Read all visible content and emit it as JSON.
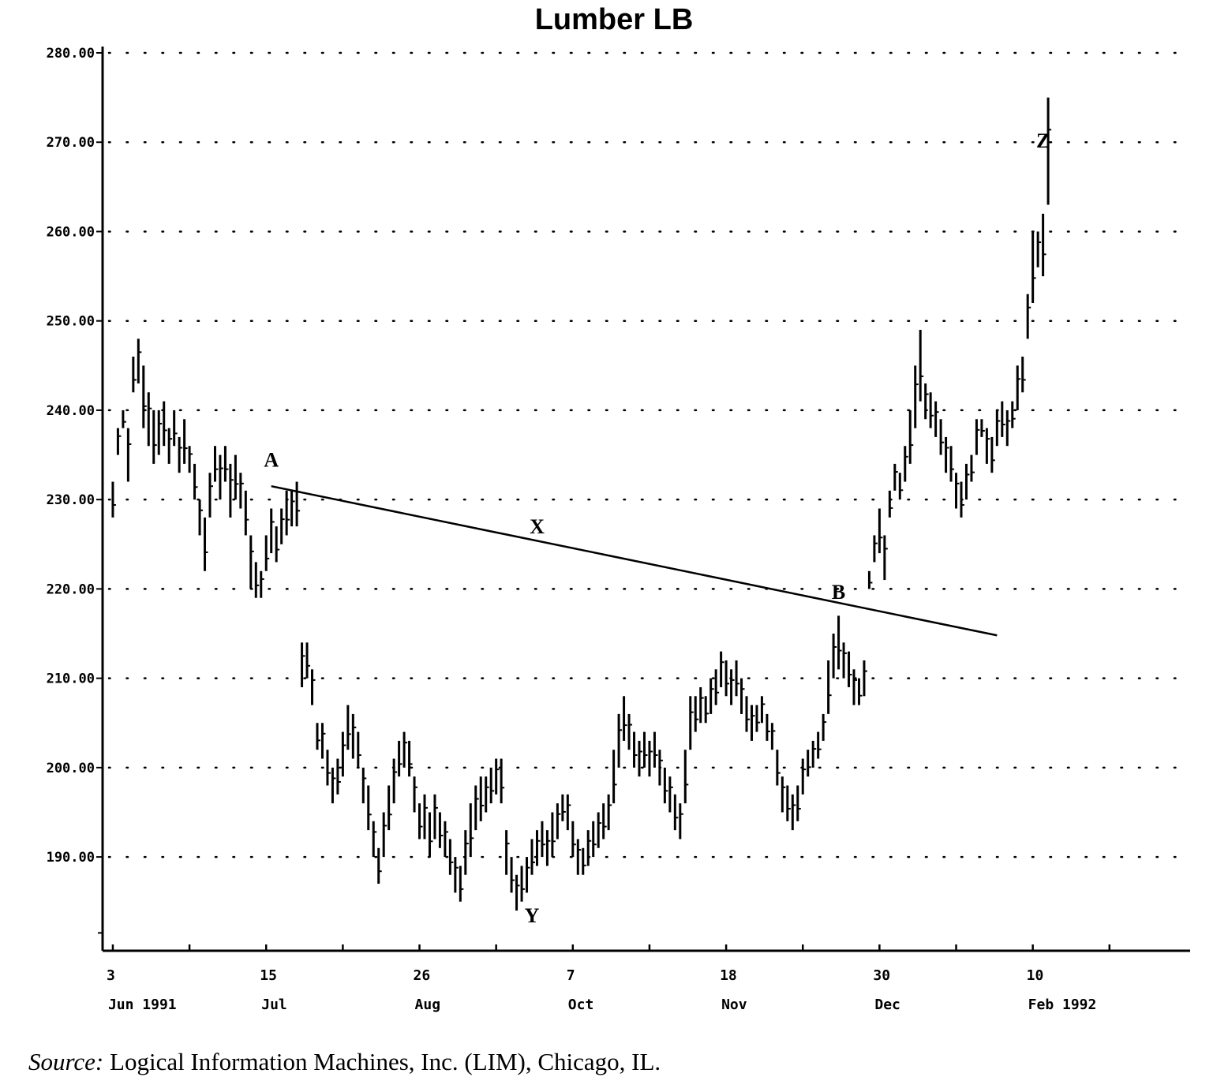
{
  "chart_data": {
    "type": "bar",
    "subtype": "ohlc-daily",
    "title": "Lumber LB",
    "source": {
      "label": "Source:",
      "text": "Logical Information Machines, Inc. (LIM), Chicago, IL."
    },
    "ylim": [
      179.5,
      280
    ],
    "y_ticks": [
      "280.00",
      "270.00",
      "260.00",
      "250.00",
      "240.00",
      "230.00",
      "220.00",
      "210.00",
      "200.00",
      "190.00"
    ],
    "y_tick_values": [
      280,
      270,
      260,
      250,
      240,
      230,
      220,
      210,
      200,
      190
    ],
    "x_tick_labels": [
      {
        "day": "3",
        "month": "Jun 1991",
        "index": 0
      },
      {
        "day": "15",
        "month": "Jul",
        "index": 30
      },
      {
        "day": "26",
        "month": "Aug",
        "index": 60
      },
      {
        "day": "7",
        "month": "Oct",
        "index": 90
      },
      {
        "day": "18",
        "month": "Nov",
        "index": 120
      },
      {
        "day": "30",
        "month": "Dec",
        "index": 150
      },
      {
        "day": "10",
        "month": "Feb 1992",
        "index": 180
      }
    ],
    "x_minor_tick_indices": [
      15,
      45,
      75,
      105,
      135,
      165,
      195
    ],
    "x_range": [
      -2,
      208
    ],
    "grid": "horizontal-dotted",
    "price_bars": [
      [
        0,
        228,
        232
      ],
      [
        1,
        235,
        238
      ],
      [
        2,
        238,
        240
      ],
      [
        3,
        232,
        238
      ],
      [
        4,
        242,
        246
      ],
      [
        5,
        243,
        248
      ],
      [
        6,
        238,
        245
      ],
      [
        7,
        236,
        242
      ],
      [
        8,
        234,
        240
      ],
      [
        9,
        235,
        240
      ],
      [
        10,
        236,
        241
      ],
      [
        11,
        234,
        238
      ],
      [
        12,
        236,
        240
      ],
      [
        13,
        233,
        237
      ],
      [
        14,
        234,
        239
      ],
      [
        15,
        233,
        236
      ],
      [
        16,
        230,
        234
      ],
      [
        17,
        226,
        230
      ],
      [
        18,
        222,
        228
      ],
      [
        19,
        228,
        233
      ],
      [
        20,
        232,
        236
      ],
      [
        21,
        230,
        235
      ],
      [
        22,
        232,
        236
      ],
      [
        23,
        228,
        234
      ],
      [
        24,
        230,
        235
      ],
      [
        25,
        229,
        233
      ],
      [
        26,
        226,
        231
      ],
      [
        27,
        220,
        226
      ],
      [
        28,
        219,
        223
      ],
      [
        29,
        219,
        222
      ],
      [
        30,
        222,
        226
      ],
      [
        31,
        224,
        229
      ],
      [
        32,
        223,
        227
      ],
      [
        33,
        225,
        229
      ],
      [
        34,
        226,
        231
      ],
      [
        35,
        227,
        231
      ],
      [
        36,
        227,
        232
      ],
      [
        37,
        209,
        214
      ],
      [
        38,
        210,
        214
      ],
      [
        39,
        207,
        211
      ],
      [
        40,
        202,
        205
      ],
      [
        41,
        201,
        205
      ],
      [
        42,
        198,
        202
      ],
      [
        43,
        196,
        200
      ],
      [
        44,
        197,
        201
      ],
      [
        45,
        199,
        204
      ],
      [
        46,
        202,
        207
      ],
      [
        47,
        201,
        206
      ],
      [
        48,
        200,
        204
      ],
      [
        49,
        196,
        200
      ],
      [
        50,
        193,
        198
      ],
      [
        51,
        190,
        194
      ],
      [
        52,
        187,
        191
      ],
      [
        53,
        190,
        195
      ],
      [
        54,
        193,
        198
      ],
      [
        55,
        196,
        201
      ],
      [
        56,
        199,
        203
      ],
      [
        57,
        200,
        204
      ],
      [
        58,
        199,
        203
      ],
      [
        59,
        195,
        199
      ],
      [
        60,
        192,
        196
      ],
      [
        61,
        192,
        197
      ],
      [
        62,
        190,
        195
      ],
      [
        63,
        192,
        197
      ],
      [
        64,
        191,
        195
      ],
      [
        65,
        190,
        194
      ],
      [
        66,
        188,
        192
      ],
      [
        67,
        186,
        190
      ],
      [
        68,
        185,
        189
      ],
      [
        69,
        188,
        193
      ],
      [
        70,
        190,
        196
      ],
      [
        71,
        193,
        198
      ],
      [
        72,
        194,
        199
      ],
      [
        73,
        195,
        199
      ],
      [
        74,
        196,
        200
      ],
      [
        75,
        197,
        201
      ],
      [
        76,
        196,
        201
      ],
      [
        77,
        188,
        193
      ],
      [
        78,
        186,
        190
      ],
      [
        79,
        184,
        188
      ],
      [
        80,
        185,
        189
      ],
      [
        81,
        186,
        190
      ],
      [
        82,
        188,
        192
      ],
      [
        83,
        189,
        193
      ],
      [
        84,
        190,
        194
      ],
      [
        85,
        189,
        193
      ],
      [
        86,
        190,
        195
      ],
      [
        87,
        192,
        196
      ],
      [
        88,
        194,
        197
      ],
      [
        89,
        193,
        197
      ],
      [
        90,
        190,
        194
      ],
      [
        91,
        188,
        192
      ],
      [
        92,
        188,
        191
      ],
      [
        93,
        189,
        193
      ],
      [
        94,
        190,
        194
      ],
      [
        95,
        191,
        195
      ],
      [
        96,
        192,
        196
      ],
      [
        97,
        193,
        197
      ],
      [
        98,
        196,
        202
      ],
      [
        99,
        200,
        206
      ],
      [
        100,
        203,
        208
      ],
      [
        101,
        202,
        206
      ],
      [
        102,
        200,
        204
      ],
      [
        103,
        199,
        203
      ],
      [
        104,
        200,
        204
      ],
      [
        105,
        199,
        203
      ],
      [
        106,
        200,
        204
      ],
      [
        107,
        198,
        202
      ],
      [
        108,
        196,
        200
      ],
      [
        109,
        195,
        199
      ],
      [
        110,
        193,
        197
      ],
      [
        111,
        192,
        196
      ],
      [
        112,
        196,
        202
      ],
      [
        113,
        202,
        208
      ],
      [
        114,
        204,
        208
      ],
      [
        115,
        205,
        209
      ],
      [
        116,
        205,
        208
      ],
      [
        117,
        206,
        210
      ],
      [
        118,
        207,
        211
      ],
      [
        119,
        209,
        213
      ],
      [
        120,
        208,
        212
      ],
      [
        121,
        207,
        211
      ],
      [
        122,
        208,
        212
      ],
      [
        123,
        206,
        210
      ],
      [
        124,
        204,
        208
      ],
      [
        125,
        203,
        207
      ],
      [
        126,
        204,
        207
      ],
      [
        127,
        205,
        208
      ],
      [
        128,
        203,
        206
      ],
      [
        129,
        202,
        205
      ],
      [
        130,
        198,
        202
      ],
      [
        131,
        195,
        199
      ],
      [
        132,
        194,
        198
      ],
      [
        133,
        193,
        197
      ],
      [
        134,
        194,
        198
      ],
      [
        135,
        197,
        201
      ],
      [
        136,
        199,
        202
      ],
      [
        137,
        200,
        203
      ],
      [
        138,
        201,
        204
      ],
      [
        139,
        203,
        206
      ],
      [
        140,
        206,
        212
      ],
      [
        141,
        210,
        215
      ],
      [
        142,
        211,
        217
      ],
      [
        143,
        210,
        214
      ],
      [
        144,
        209,
        213
      ],
      [
        145,
        207,
        211
      ],
      [
        146,
        207,
        210
      ],
      [
        147,
        208,
        212
      ],
      [
        148,
        220,
        222
      ],
      [
        149,
        223,
        226
      ],
      [
        150,
        224,
        229
      ],
      [
        151,
        221,
        226
      ],
      [
        152,
        228,
        231
      ],
      [
        153,
        231,
        234
      ],
      [
        154,
        230,
        233
      ],
      [
        155,
        232,
        236
      ],
      [
        156,
        234,
        240
      ],
      [
        157,
        238,
        245
      ],
      [
        158,
        241,
        249
      ],
      [
        159,
        239,
        243
      ],
      [
        160,
        238,
        242
      ],
      [
        161,
        237,
        241
      ],
      [
        162,
        235,
        239
      ],
      [
        163,
        233,
        237
      ],
      [
        164,
        232,
        236
      ],
      [
        165,
        229,
        233
      ],
      [
        166,
        228,
        232
      ],
      [
        167,
        230,
        234
      ],
      [
        168,
        232,
        235
      ],
      [
        169,
        235,
        239
      ],
      [
        170,
        237,
        239
      ],
      [
        171,
        234,
        238
      ],
      [
        172,
        233,
        237
      ],
      [
        173,
        236,
        240
      ],
      [
        174,
        237,
        241
      ],
      [
        175,
        236,
        240
      ],
      [
        176,
        238,
        241
      ],
      [
        177,
        240,
        245
      ],
      [
        178,
        242,
        246
      ],
      [
        179,
        248,
        253
      ],
      [
        180,
        252,
        260
      ],
      [
        181,
        256,
        260
      ],
      [
        182,
        255,
        262
      ],
      [
        183,
        263,
        275
      ]
    ],
    "trendline": {
      "label": "X",
      "from": [
        31,
        231.5
      ],
      "to": [
        173,
        214.8
      ]
    },
    "annotations": [
      {
        "label": "A",
        "index": 31,
        "value": 233.7
      },
      {
        "label": "X",
        "index": 83,
        "value": 226.2
      },
      {
        "label": "B",
        "index": 142,
        "value": 218.9
      },
      {
        "label": "Y",
        "index": 82,
        "value": 182.7
      },
      {
        "label": "Z",
        "index": 182,
        "value": 269.4
      }
    ]
  }
}
